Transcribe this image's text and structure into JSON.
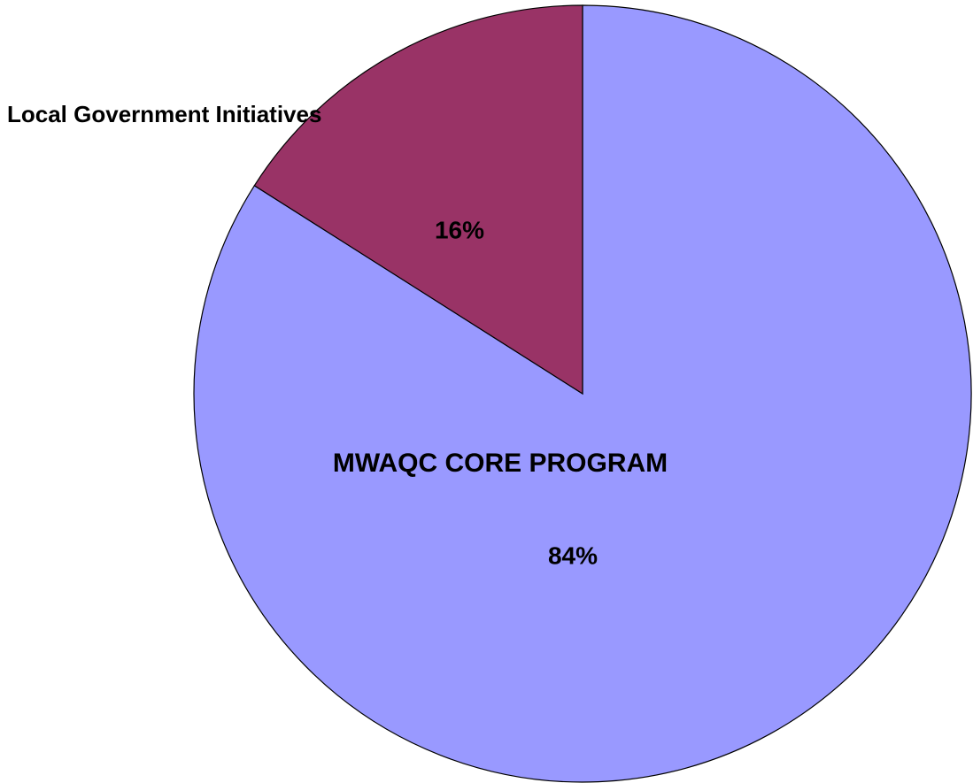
{
  "chart_data": {
    "type": "pie",
    "categories": [
      "MWAQC CORE PROGRAM",
      "Local Government Initiatives"
    ],
    "values": [
      84,
      16
    ],
    "value_labels": [
      "84%",
      "16%"
    ],
    "colors": [
      "#9999ff",
      "#993366"
    ]
  }
}
